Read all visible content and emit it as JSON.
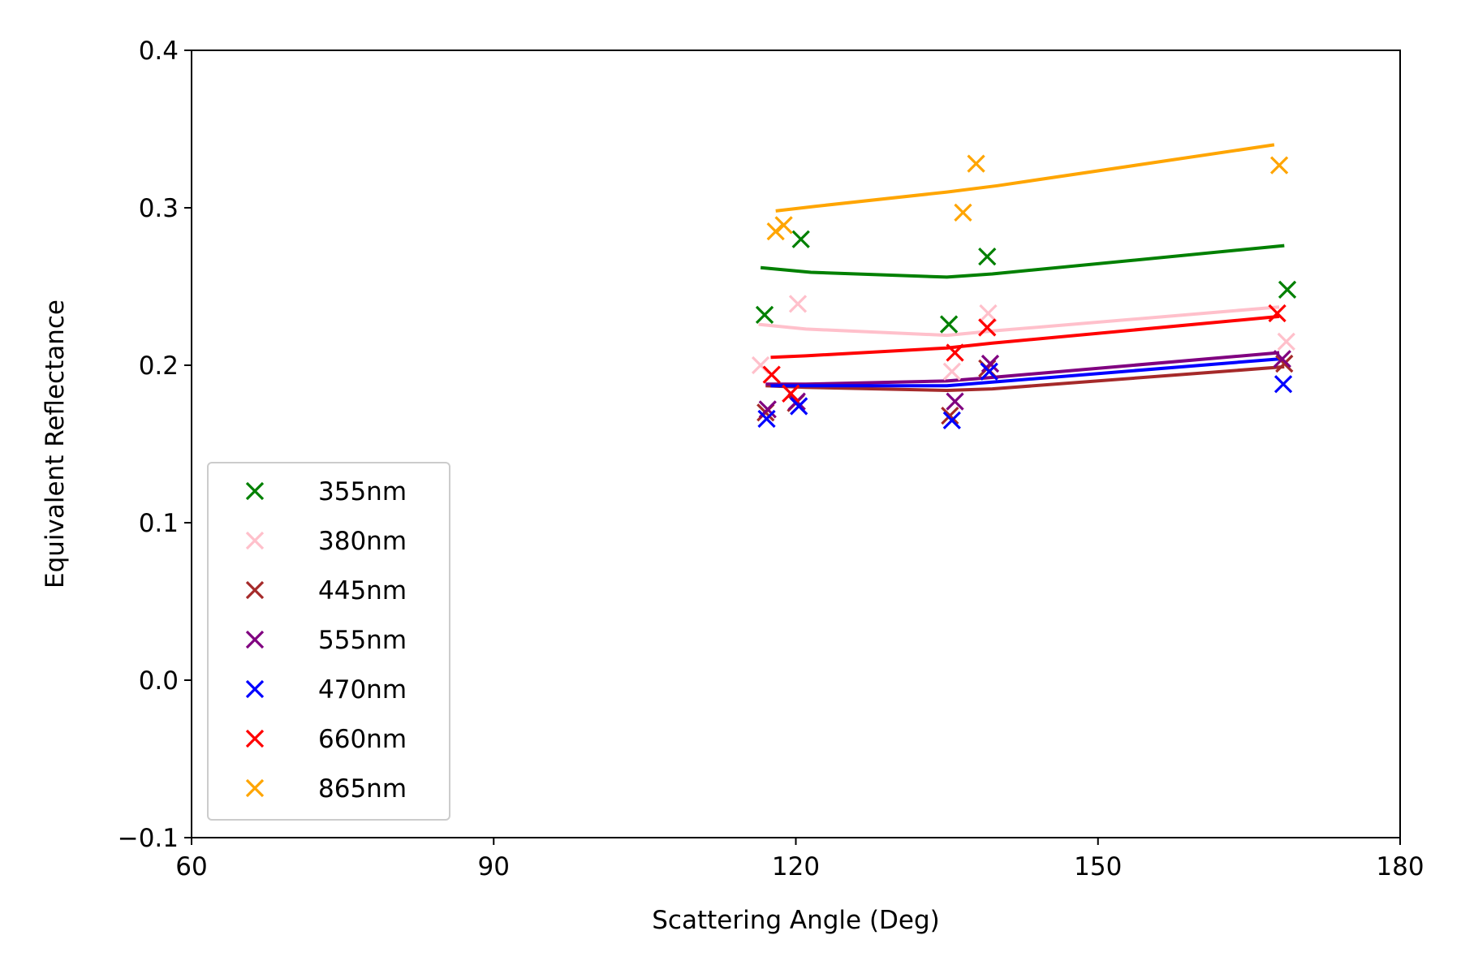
{
  "chart_data": {
    "type": "scatter",
    "title": "",
    "xlabel": "Scattering Angle (Deg)",
    "ylabel": "Equivalent Reflectance",
    "xlim": [
      60,
      180
    ],
    "ylim": [
      -0.1,
      0.4
    ],
    "xticks": [
      60,
      90,
      120,
      150,
      180
    ],
    "xtick_labels": [
      "60",
      "90",
      "120",
      "150",
      "180"
    ],
    "yticks": [
      -0.1,
      0.0,
      0.1,
      0.2,
      0.3,
      0.4
    ],
    "ytick_labels": [
      "−0.1",
      "0.0",
      "0.1",
      "0.2",
      "0.3",
      "0.4"
    ],
    "grid": false,
    "legend_position": "lower-left",
    "marker": "x",
    "series": [
      {
        "name": "355nm",
        "color": "#008000",
        "points": [
          [
            116.9,
            0.232
          ],
          [
            120.5,
            0.28
          ],
          [
            135.2,
            0.226
          ],
          [
            139.0,
            0.269
          ],
          [
            168.8,
            0.248
          ]
        ],
        "line": [
          [
            116.5,
            0.262
          ],
          [
            121.5,
            0.259
          ],
          [
            135.0,
            0.256
          ],
          [
            139.5,
            0.258
          ],
          [
            168.5,
            0.276
          ]
        ]
      },
      {
        "name": "380nm",
        "color": "#ffc0cb",
        "points": [
          [
            116.5,
            0.2
          ],
          [
            120.2,
            0.239
          ],
          [
            135.5,
            0.196
          ],
          [
            139.1,
            0.233
          ],
          [
            168.7,
            0.215
          ]
        ],
        "line": [
          [
            116.3,
            0.226
          ],
          [
            121.0,
            0.223
          ],
          [
            135.0,
            0.219
          ],
          [
            140.0,
            0.222
          ],
          [
            168.0,
            0.237
          ]
        ]
      },
      {
        "name": "445nm",
        "color": "#a52a2a",
        "points": [
          [
            117.0,
            0.17
          ],
          [
            120.0,
            0.176
          ],
          [
            135.3,
            0.168
          ],
          [
            139.0,
            0.198
          ],
          [
            168.5,
            0.201
          ]
        ],
        "line": [
          [
            117.0,
            0.187
          ],
          [
            121.0,
            0.186
          ],
          [
            135.0,
            0.184
          ],
          [
            139.5,
            0.185
          ],
          [
            168.5,
            0.199
          ]
        ]
      },
      {
        "name": "555nm",
        "color": "#800080",
        "points": [
          [
            117.2,
            0.172
          ],
          [
            120.1,
            0.177
          ],
          [
            135.8,
            0.177
          ],
          [
            139.3,
            0.201
          ],
          [
            168.3,
            0.204
          ]
        ],
        "line": [
          [
            117.0,
            0.188
          ],
          [
            121.0,
            0.188
          ],
          [
            135.0,
            0.19
          ],
          [
            139.0,
            0.192
          ],
          [
            168.0,
            0.208
          ]
        ]
      },
      {
        "name": "470nm",
        "color": "#0000ff",
        "points": [
          [
            117.1,
            0.166
          ],
          [
            120.3,
            0.174
          ],
          [
            135.5,
            0.165
          ],
          [
            139.2,
            0.196
          ],
          [
            168.4,
            0.188
          ]
        ],
        "line": [
          [
            117.5,
            0.187
          ],
          [
            121.0,
            0.187
          ],
          [
            135.0,
            0.187
          ],
          [
            139.0,
            0.189
          ],
          [
            168.0,
            0.204
          ]
        ]
      },
      {
        "name": "660nm",
        "color": "#ff0000",
        "points": [
          [
            117.6,
            0.194
          ],
          [
            119.5,
            0.182
          ],
          [
            135.8,
            0.208
          ],
          [
            139.0,
            0.224
          ],
          [
            167.8,
            0.233
          ]
        ],
        "line": [
          [
            117.5,
            0.205
          ],
          [
            121.0,
            0.206
          ],
          [
            135.0,
            0.211
          ],
          [
            139.5,
            0.214
          ],
          [
            168.0,
            0.231
          ]
        ]
      },
      {
        "name": "865nm",
        "color": "#ffa500",
        "points": [
          [
            118.0,
            0.285
          ],
          [
            118.8,
            0.289
          ],
          [
            136.6,
            0.297
          ],
          [
            137.9,
            0.328
          ],
          [
            168.0,
            0.327
          ]
        ],
        "line": [
          [
            118.0,
            0.298
          ],
          [
            122.0,
            0.301
          ],
          [
            135.0,
            0.31
          ],
          [
            140.0,
            0.314
          ],
          [
            167.5,
            0.34
          ]
        ]
      }
    ]
  }
}
